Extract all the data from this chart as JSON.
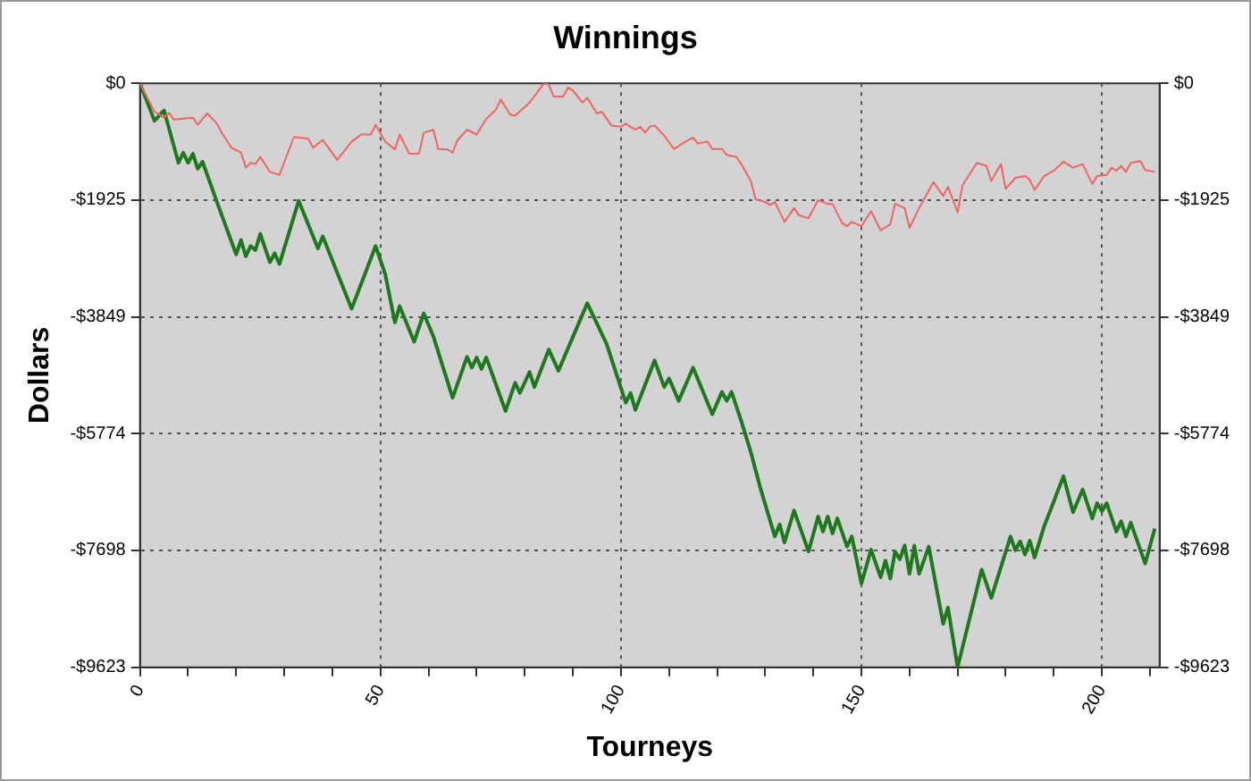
{
  "chart_data": {
    "type": "line",
    "title": "Winnings",
    "xlabel": "Tourneys",
    "ylabel": "Dollars",
    "marker": "none",
    "grid": true,
    "xlim": [
      0,
      212
    ],
    "xticks": [
      0,
      {
        "value": 10,
        "label": null
      },
      {
        "value": 20,
        "label": null
      },
      {
        "value": 30,
        "label": null
      },
      {
        "value": 40,
        "label": null
      },
      50,
      {
        "value": 60,
        "label": null
      },
      {
        "value": 70,
        "label": null
      },
      {
        "value": 80,
        "label": null
      },
      {
        "value": 90,
        "label": null
      },
      100,
      {
        "value": 110,
        "label": null
      },
      {
        "value": 120,
        "label": null
      },
      {
        "value": 130,
        "label": null
      },
      {
        "value": 140,
        "label": null
      },
      150,
      {
        "value": 160,
        "label": null
      },
      {
        "value": 170,
        "label": null
      },
      {
        "value": 180,
        "label": null
      },
      {
        "value": 190,
        "label": null
      },
      200,
      {
        "value": 210,
        "label": null
      }
    ],
    "ylim": [
      -9623,
      0
    ],
    "yticks": [
      {
        "value": 0,
        "label": "$0"
      },
      {
        "value": -1925,
        "label": "-$1925"
      },
      {
        "value": -3849,
        "label": "-$3849"
      },
      {
        "value": -5774,
        "label": "-$5774"
      },
      {
        "value": -7698,
        "label": "-$7698"
      },
      {
        "value": -9623,
        "label": "-$9623"
      }
    ],
    "y2lim": [
      -9623,
      0
    ],
    "y2ticks": [
      {
        "value": 0,
        "label": "$0"
      },
      {
        "value": -1925,
        "label": "-$1925"
      },
      {
        "value": -3849,
        "label": "-$3849"
      },
      {
        "value": -5774,
        "label": "-$5774"
      },
      {
        "value": -7698,
        "label": "-$7698"
      },
      {
        "value": -9623,
        "label": "-$9623"
      }
    ],
    "series": [
      {
        "color": "#f06464",
        "x": [
          0,
          3,
          5,
          6,
          7,
          11,
          12,
          14,
          16,
          17,
          19,
          21,
          22,
          23,
          24,
          25,
          27,
          29,
          32,
          35,
          36,
          38,
          41,
          44,
          46,
          48,
          49,
          51,
          53,
          54,
          56,
          58,
          59,
          61,
          62,
          64,
          65,
          66,
          68,
          70,
          72,
          74,
          75,
          77,
          78,
          81,
          84,
          85,
          86,
          88,
          89,
          90,
          92,
          93,
          95,
          96,
          98,
          100,
          101,
          103,
          104,
          105,
          106,
          107,
          109,
          111,
          113,
          115,
          116,
          118,
          119,
          121,
          122,
          124,
          125,
          127,
          128,
          130,
          131,
          132,
          134,
          136,
          137,
          139,
          141,
          143,
          144,
          146,
          147,
          148,
          150,
          152,
          154,
          156,
          157,
          159,
          160,
          162,
          165,
          167,
          168,
          170,
          171,
          174,
          176,
          177,
          179,
          180,
          182,
          184,
          185,
          186,
          188,
          190,
          192,
          194,
          196,
          198,
          199,
          201,
          202,
          203,
          204,
          205,
          206,
          208,
          209,
          211
        ],
        "values": [
          0,
          -467,
          -566,
          -486,
          -596,
          -566,
          -685,
          -497,
          -665,
          -814,
          -1063,
          -1142,
          -1390,
          -1311,
          -1331,
          -1212,
          -1460,
          -1510,
          -884,
          -913,
          -1063,
          -933,
          -1261,
          -963,
          -844,
          -844,
          -685,
          -963,
          -1092,
          -844,
          -1162,
          -1162,
          -814,
          -764,
          -1083,
          -1092,
          -1142,
          -943,
          -764,
          -844,
          -586,
          -437,
          -268,
          -516,
          -536,
          -318,
          0,
          -20,
          -218,
          -218,
          -69,
          -119,
          -318,
          -238,
          -497,
          -467,
          -695,
          -715,
          -665,
          -764,
          -715,
          -814,
          -715,
          -695,
          -864,
          -1083,
          -983,
          -894,
          -993,
          -963,
          -1083,
          -1083,
          -1182,
          -1212,
          -1331,
          -1609,
          -1907,
          -1957,
          -2006,
          -1957,
          -2285,
          -2056,
          -2175,
          -2225,
          -1927,
          -1987,
          -1987,
          -2304,
          -2354,
          -2285,
          -2354,
          -2106,
          -2423,
          -2324,
          -1987,
          -2056,
          -2383,
          -2056,
          -1629,
          -1857,
          -1708,
          -2125,
          -1688,
          -1311,
          -1361,
          -1609,
          -1331,
          -1738,
          -1559,
          -1529,
          -1589,
          -1758,
          -1529,
          -1440,
          -1291,
          -1390,
          -1331,
          -1659,
          -1529,
          -1510,
          -1390,
          -1440,
          -1361,
          -1460,
          -1311,
          -1281,
          -1430,
          -1460
        ]
      },
      {
        "color": "#1e781e",
        "x": [
          0,
          3,
          5,
          8,
          9,
          10,
          11,
          12,
          13,
          16,
          20,
          21,
          22,
          23,
          24,
          25,
          27,
          28,
          29,
          33,
          37,
          38,
          44,
          49,
          51,
          53,
          54,
          57,
          59,
          61,
          65,
          68,
          69,
          70,
          71,
          72,
          76,
          78,
          79,
          81,
          82,
          85,
          87,
          93,
          97,
          101,
          102,
          103,
          107,
          109,
          110,
          112,
          115,
          119,
          121,
          122,
          123,
          125,
          127,
          129,
          132,
          133,
          134,
          136,
          139,
          141,
          142,
          143,
          144,
          145,
          147,
          148,
          150,
          152,
          154,
          155,
          156,
          157,
          158,
          159,
          160,
          161,
          162,
          164,
          167,
          168,
          170,
          175,
          177,
          181,
          182,
          183,
          184,
          185,
          186,
          188,
          190,
          192,
          194,
          196,
          198,
          199,
          200,
          201,
          203,
          204,
          205,
          206,
          209,
          211
        ],
        "values": [
          0,
          -617,
          -447,
          -1311,
          -1142,
          -1311,
          -1162,
          -1410,
          -1291,
          -1957,
          -2821,
          -2583,
          -2851,
          -2681,
          -2750,
          -2482,
          -2949,
          -2800,
          -2979,
          -1936,
          -2720,
          -2523,
          -3715,
          -2681,
          -3149,
          -3941,
          -3673,
          -4260,
          -3792,
          -4171,
          -5183,
          -4507,
          -4686,
          -4519,
          -4707,
          -4519,
          -5401,
          -4936,
          -5103,
          -4757,
          -5005,
          -4388,
          -4737,
          -3625,
          -4290,
          -5264,
          -5103,
          -5383,
          -4567,
          -5005,
          -4865,
          -5234,
          -4686,
          -5452,
          -5085,
          -5234,
          -5085,
          -5562,
          -6077,
          -6673,
          -7468,
          -7269,
          -7567,
          -7040,
          -7716,
          -7140,
          -7388,
          -7140,
          -7418,
          -7170,
          -7635,
          -7468,
          -8243,
          -7686,
          -8141,
          -7865,
          -8163,
          -7716,
          -7844,
          -7617,
          -8082,
          -7617,
          -8082,
          -7635,
          -8907,
          -8639,
          -9623,
          -8014,
          -8481,
          -7468,
          -7695,
          -7547,
          -7766,
          -7537,
          -7814,
          -7299,
          -6891,
          -6474,
          -7070,
          -6694,
          -7170,
          -6920,
          -7051,
          -6920,
          -7388,
          -7218,
          -7468,
          -7239,
          -7915,
          -7337
        ]
      }
    ]
  }
}
